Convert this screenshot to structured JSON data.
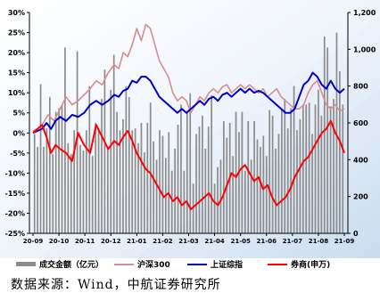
{
  "chart_data": {
    "type": "line",
    "title": "",
    "y_left": {
      "ticks": [
        "30%",
        "25%",
        "20%",
        "15%",
        "10%",
        "5%",
        "0%",
        "-5%",
        "-10%",
        "-15%",
        "-20%",
        "-25%"
      ],
      "range": [
        -25,
        30
      ],
      "unit": "%"
    },
    "y_right": {
      "ticks": [
        "0",
        "200",
        "400",
        "600",
        "800",
        "1,000",
        "1,200"
      ],
      "range": [
        0,
        1200
      ]
    },
    "x_ticks": [
      "20-09",
      "20-10",
      "20-11",
      "20-12",
      "21-01",
      "21-02",
      "21-03",
      "21-04",
      "21-05",
      "21-06",
      "21-07",
      "21-08",
      "21-09"
    ],
    "series": [
      {
        "name": "成交金额（亿元）",
        "kind": "bar",
        "axis": "right",
        "color": "#8c8c8c",
        "sample_values": [
          540,
          470,
          810,
          470,
          570,
          740,
          430,
          660,
          680,
          700,
          1010,
          490,
          430,
          560,
          990,
          480,
          450,
          560,
          800,
          420,
          600,
          560,
          730,
          890,
          470,
          780,
          970,
          660,
          560,
          620,
          800,
          740,
          560,
          570,
          490,
          600,
          440,
          600,
          710,
          500,
          400,
          560,
          530,
          410,
          550,
          340,
          460,
          590,
          700,
          340,
          660,
          760,
          270,
          540,
          580,
          640,
          460,
          580,
          750,
          270,
          360,
          400,
          610,
          520,
          600,
          420,
          660,
          550,
          660,
          340,
          610,
          400,
          610,
          510,
          470,
          530,
          420,
          670,
          640,
          460,
          540,
          670,
          730,
          570,
          680,
          800,
          560,
          620,
          700,
          700,
          710,
          540,
          700,
          780,
          640,
          1070,
          1010,
          690,
          730,
          1090,
          880,
          700
        ]
      },
      {
        "name": "沪深300",
        "kind": "line",
        "axis": "left",
        "color": "#d98c8c",
        "points": [
          [
            0,
            0.5
          ],
          [
            3,
            1
          ],
          [
            6,
            2
          ],
          [
            10,
            4.5
          ],
          [
            14,
            3
          ],
          [
            18,
            6
          ],
          [
            22,
            9
          ],
          [
            26,
            7
          ],
          [
            30,
            8
          ],
          [
            34,
            9.5
          ],
          [
            38,
            11
          ],
          [
            42,
            13
          ],
          [
            46,
            12
          ],
          [
            50,
            15
          ],
          [
            54,
            17
          ],
          [
            57,
            16
          ],
          [
            60,
            20
          ],
          [
            63,
            19
          ],
          [
            66,
            22
          ],
          [
            69,
            26
          ],
          [
            72,
            23
          ],
          [
            75,
            27
          ],
          [
            78,
            26
          ],
          [
            81,
            22
          ],
          [
            84,
            18
          ],
          [
            87,
            16
          ],
          [
            90,
            14
          ],
          [
            93,
            10
          ],
          [
            96,
            8
          ],
          [
            99,
            9
          ],
          [
            102,
            8
          ],
          [
            105,
            5
          ],
          [
            108,
            7
          ],
          [
            111,
            9
          ],
          [
            114,
            8
          ],
          [
            117,
            10
          ],
          [
            120,
            11
          ],
          [
            123,
            10
          ],
          [
            126,
            11.5
          ],
          [
            129,
            12
          ],
          [
            132,
            10
          ],
          [
            135,
            11
          ],
          [
            138,
            12
          ],
          [
            141,
            11
          ],
          [
            144,
            12
          ],
          [
            147,
            11
          ],
          [
            150,
            10
          ],
          [
            153,
            11
          ],
          [
            156,
            9
          ],
          [
            159,
            10
          ],
          [
            162,
            11
          ],
          [
            165,
            9
          ],
          [
            168,
            8
          ],
          [
            171,
            7
          ],
          [
            174,
            6
          ],
          [
            177,
            6
          ],
          [
            180,
            7
          ],
          [
            183,
            10
          ],
          [
            186,
            12
          ],
          [
            189,
            13
          ],
          [
            192,
            10
          ],
          [
            195,
            7
          ],
          [
            198,
            6
          ],
          [
            201,
            7
          ],
          [
            204,
            5.5
          ],
          [
            207,
            6
          ]
        ]
      },
      {
        "name": "上证综指",
        "kind": "line",
        "axis": "left",
        "color": "#0000cc",
        "points": [
          [
            0,
            0
          ],
          [
            3,
            0.5
          ],
          [
            6,
            1
          ],
          [
            9,
            2.5
          ],
          [
            12,
            1
          ],
          [
            15,
            3
          ],
          [
            18,
            4
          ],
          [
            22,
            3
          ],
          [
            26,
            4.5
          ],
          [
            30,
            4
          ],
          [
            34,
            5
          ],
          [
            38,
            7
          ],
          [
            42,
            8
          ],
          [
            46,
            7
          ],
          [
            50,
            8
          ],
          [
            54,
            9.5
          ],
          [
            57,
            9
          ],
          [
            60,
            10.5
          ],
          [
            63,
            11
          ],
          [
            66,
            13
          ],
          [
            69,
            12.5
          ],
          [
            72,
            14
          ],
          [
            75,
            14
          ],
          [
            78,
            13
          ],
          [
            81,
            11
          ],
          [
            84,
            9
          ],
          [
            87,
            8
          ],
          [
            90,
            7
          ],
          [
            93,
            6
          ],
          [
            96,
            5
          ],
          [
            99,
            6
          ],
          [
            102,
            5
          ],
          [
            105,
            6
          ],
          [
            108,
            7
          ],
          [
            111,
            8
          ],
          [
            114,
            7
          ],
          [
            117,
            8.5
          ],
          [
            120,
            9
          ],
          [
            123,
            8
          ],
          [
            126,
            9.5
          ],
          [
            129,
            10
          ],
          [
            132,
            9
          ],
          [
            135,
            10
          ],
          [
            138,
            11
          ],
          [
            141,
            10
          ],
          [
            144,
            11
          ],
          [
            147,
            10
          ],
          [
            150,
            10.5
          ],
          [
            153,
            10
          ],
          [
            156,
            9
          ],
          [
            159,
            8
          ],
          [
            162,
            7
          ],
          [
            165,
            6
          ],
          [
            168,
            5
          ],
          [
            171,
            5
          ],
          [
            174,
            6
          ],
          [
            177,
            9
          ],
          [
            180,
            12
          ],
          [
            183,
            13
          ],
          [
            186,
            15
          ],
          [
            189,
            14
          ],
          [
            192,
            12
          ],
          [
            195,
            11
          ],
          [
            198,
            13
          ],
          [
            201,
            11
          ],
          [
            204,
            10
          ],
          [
            207,
            11
          ]
        ]
      },
      {
        "name": "券商(申万)",
        "kind": "line",
        "axis": "left",
        "color": "#ff0000",
        "points": [
          [
            0,
            0
          ],
          [
            3,
            1
          ],
          [
            6,
            2
          ],
          [
            9,
            -1
          ],
          [
            12,
            -5
          ],
          [
            15,
            -3
          ],
          [
            18,
            -4
          ],
          [
            22,
            -5
          ],
          [
            26,
            -7
          ],
          [
            30,
            0
          ],
          [
            34,
            -3
          ],
          [
            38,
            -5
          ],
          [
            42,
            2
          ],
          [
            46,
            -1
          ],
          [
            50,
            -4
          ],
          [
            54,
            -2
          ],
          [
            57,
            -3
          ],
          [
            60,
            -1
          ],
          [
            63,
            0.5
          ],
          [
            66,
            -2
          ],
          [
            69,
            -5
          ],
          [
            72,
            -7
          ],
          [
            75,
            -9
          ],
          [
            78,
            -10
          ],
          [
            81,
            -12
          ],
          [
            84,
            -14
          ],
          [
            87,
            -16
          ],
          [
            90,
            -15
          ],
          [
            93,
            -17
          ],
          [
            96,
            -16
          ],
          [
            99,
            -18
          ],
          [
            102,
            -17
          ],
          [
            105,
            -19
          ],
          [
            108,
            -18
          ],
          [
            111,
            -17
          ],
          [
            114,
            -16
          ],
          [
            117,
            -15
          ],
          [
            120,
            -17
          ],
          [
            123,
            -18
          ],
          [
            126,
            -16
          ],
          [
            129,
            -13
          ],
          [
            132,
            -10
          ],
          [
            135,
            -11
          ],
          [
            138,
            -9
          ],
          [
            141,
            -8
          ],
          [
            144,
            -10
          ],
          [
            147,
            -12
          ],
          [
            150,
            -11
          ],
          [
            153,
            -14
          ],
          [
            156,
            -13
          ],
          [
            159,
            -16
          ],
          [
            162,
            -18
          ],
          [
            165,
            -17
          ],
          [
            168,
            -16
          ],
          [
            171,
            -14
          ],
          [
            174,
            -11
          ],
          [
            177,
            -9
          ],
          [
            180,
            -7
          ],
          [
            183,
            -6
          ],
          [
            186,
            -4
          ],
          [
            189,
            -2
          ],
          [
            192,
            0
          ],
          [
            195,
            1
          ],
          [
            198,
            3
          ],
          [
            201,
            0
          ],
          [
            204,
            -2
          ],
          [
            207,
            -5
          ]
        ]
      }
    ],
    "grid": false,
    "legend_position": "bottom",
    "source": "数据来源：Wind，中航证券研究所"
  },
  "legend": {
    "items": [
      "成交金额（亿元）",
      "沪深300",
      "上证综指",
      "券商(申万)"
    ]
  },
  "source": "数据来源：Wind，中航证券研究所"
}
